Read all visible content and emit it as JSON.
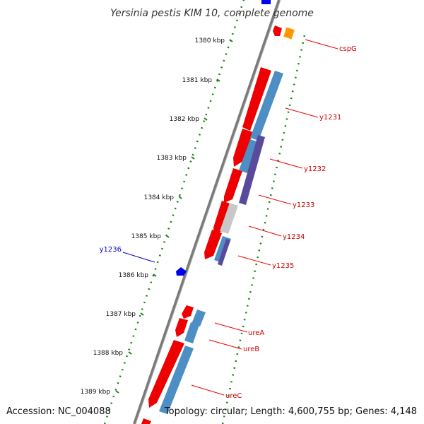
{
  "title": "Yersinia pestis KIM 10, complete genome",
  "footer": {
    "accession": "Accession: NC_004088",
    "summary": "Topology: circular; Length: 4,600,755 bp; Genes: 4,148"
  },
  "colors": {
    "backbone": "#7a7a7a",
    "tick_dots": "#1a7f1a",
    "cds_forward": "#ee0000",
    "feature_steelblue": "#4d8fc4",
    "feature_purple": "#5a4a9c",
    "feature_gray": "#c8c8c8",
    "feature_orange": "#ff9900",
    "gene_blue": "#0000ee",
    "label_red": "#cc0000",
    "label_blue": "#0000cc"
  },
  "ticks": [
    {
      "label": "1380 kbp"
    },
    {
      "label": "1381 kbp"
    },
    {
      "label": "1382 kbp"
    },
    {
      "label": "1383 kbp"
    },
    {
      "label": "1384 kbp"
    },
    {
      "label": "1385 kbp"
    },
    {
      "label": "1386 kbp"
    },
    {
      "label": "1387 kbp"
    },
    {
      "label": "1388 kbp"
    },
    {
      "label": "1389 kbp"
    }
  ],
  "gene_labels": [
    {
      "text": "cspG",
      "color": "red"
    },
    {
      "text": "y1231",
      "color": "red"
    },
    {
      "text": "y1232",
      "color": "red"
    },
    {
      "text": "y1233",
      "color": "red"
    },
    {
      "text": "y1234",
      "color": "red"
    },
    {
      "text": "y1235",
      "color": "red"
    },
    {
      "text": "y1236",
      "color": "blue"
    },
    {
      "text": "ureA",
      "color": "red"
    },
    {
      "text": "ureB",
      "color": "red"
    },
    {
      "text": "ureC",
      "color": "red"
    }
  ]
}
